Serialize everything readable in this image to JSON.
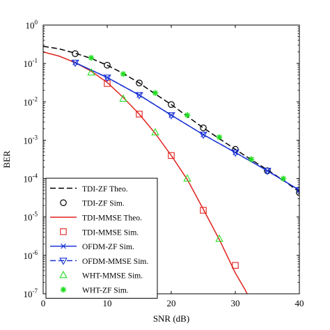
{
  "chart_data": {
    "type": "line",
    "title": "",
    "xlabel": "SNR (dB)",
    "ylabel": "BER",
    "xlim": [
      0,
      40
    ],
    "ylim_log10": [
      -7,
      0
    ],
    "yscale": "log",
    "grid": false,
    "legend_position": "lower-left",
    "x_ticks": [
      0,
      10,
      20,
      30,
      40
    ],
    "y_tick_exponents": [
      -7,
      -6,
      -5,
      -4,
      -3,
      -2,
      -1,
      0
    ],
    "y_tick_base": "10",
    "series": [
      {
        "name": "TDI-ZF Theo.",
        "style": "line",
        "dash": "dashed",
        "color": "#000000",
        "x": [
          0,
          2.5,
          5,
          7.5,
          10,
          12.5,
          15,
          17.5,
          20,
          22.5,
          25,
          27.5,
          30,
          32.5,
          35,
          37.5,
          40
        ],
        "y": [
          0.28,
          0.24,
          0.185,
          0.135,
          0.09,
          0.055,
          0.031,
          0.016,
          0.0085,
          0.0042,
          0.0021,
          0.0011,
          0.00058,
          0.00031,
          0.00017,
          9e-05,
          4.5e-05
        ]
      },
      {
        "name": "TDI-ZF Sim.",
        "style": "marker",
        "marker": "circle",
        "color": "#000000",
        "x": [
          5,
          10,
          15,
          20,
          25,
          30,
          35,
          40
        ],
        "y": [
          0.18,
          0.09,
          0.031,
          0.0085,
          0.0021,
          0.00058,
          0.00016,
          4.3e-05
        ]
      },
      {
        "name": "TDI-MMSE Theo.",
        "style": "line",
        "dash": "solid",
        "color": "#e0221c",
        "x": [
          0,
          2.5,
          5,
          7.5,
          10,
          12.5,
          15,
          17.5,
          20,
          22.5,
          25,
          27.5,
          30,
          31.5,
          32.5
        ],
        "y": [
          0.2,
          0.155,
          0.105,
          0.063,
          0.032,
          0.013,
          0.0048,
          0.0015,
          0.0004,
          9.5e-05,
          1.6e-05,
          2.6e-06,
          3.5e-07,
          1.3e-07,
          6e-08
        ]
      },
      {
        "name": "TDI-MMSE Sim.",
        "style": "marker",
        "marker": "square",
        "color": "#e0221c",
        "x": [
          10,
          15,
          20,
          25,
          30
        ],
        "y": [
          0.03,
          0.0048,
          0.0004,
          1.5e-05,
          5.5e-07
        ]
      },
      {
        "name": "OFDM-ZF Sim.",
        "style": "line+marker",
        "dash": "solid",
        "marker": "x",
        "color": "#1a32d4",
        "x": [
          5,
          10,
          15,
          20,
          25,
          30,
          35,
          40
        ],
        "y": [
          0.105,
          0.043,
          0.015,
          0.0045,
          0.0014,
          0.00048,
          0.00016,
          5e-05
        ]
      },
      {
        "name": "OFDM-MMSE Sim.",
        "style": "line+marker",
        "dash": "dashed",
        "marker": "triangle-down",
        "color": "#1a32d4",
        "x": [
          5,
          10,
          15,
          20,
          25,
          30,
          35,
          40
        ],
        "y": [
          0.105,
          0.043,
          0.015,
          0.0045,
          0.0014,
          0.00048,
          0.00016,
          5e-05
        ]
      },
      {
        "name": "WHT-MMSE Sim.",
        "style": "marker",
        "marker": "triangle-up",
        "color": "#22dd22",
        "x": [
          7.5,
          12.5,
          17.5,
          22.5,
          27.5
        ],
        "y": [
          0.058,
          0.012,
          0.0016,
          0.0001,
          2.7e-06
        ]
      },
      {
        "name": "WHT-ZF Sim.",
        "style": "marker",
        "marker": "asterisk",
        "color": "#22dd22",
        "x": [
          7.5,
          12.5,
          17.5,
          22.5,
          27.5,
          32.5,
          37.5
        ],
        "y": [
          0.14,
          0.053,
          0.017,
          0.0045,
          0.0012,
          0.00032,
          0.0001
        ]
      }
    ]
  }
}
